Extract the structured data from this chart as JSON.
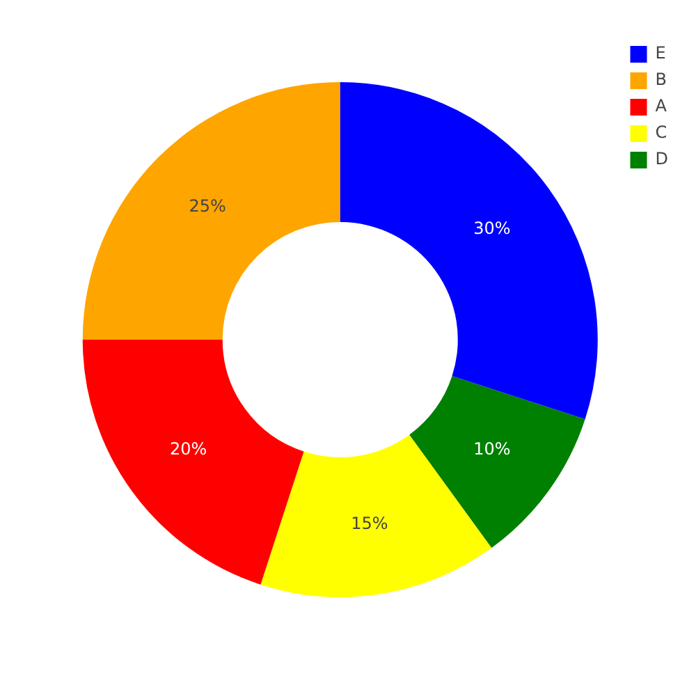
{
  "chart_data": {
    "type": "donut",
    "categories": [
      "E",
      "B",
      "A",
      "C",
      "D"
    ],
    "values": [
      30,
      25,
      20,
      15,
      10
    ],
    "colors": [
      "#0000ff",
      "#ffa500",
      "#ff0000",
      "#ffff00",
      "#008000"
    ],
    "value_labels": [
      "30%",
      "25%",
      "20%",
      "15%",
      "10%"
    ],
    "legend": "top right"
  }
}
